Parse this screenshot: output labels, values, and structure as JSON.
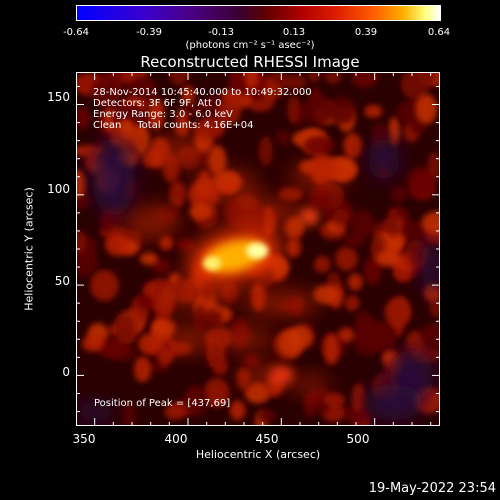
{
  "colorbar": {
    "ticks": [
      "-0.64",
      "-0.39",
      "-0.13",
      "0.13",
      "0.39",
      "0.64"
    ],
    "units": "(photons cm⁻² s⁻¹ asec⁻²)"
  },
  "chart_data": {
    "type": "heatmap",
    "title": "Reconstructed RHESSI Image",
    "xlabel": "Heliocentric X (arcsec)",
    "ylabel": "Heliocentric Y (arcsec)",
    "xlim": [
      340,
      535
    ],
    "ylim": [
      -28,
      168
    ],
    "xticks": [
      "350",
      "400",
      "450",
      "500"
    ],
    "yticks": [
      "0",
      "50",
      "100",
      "150"
    ],
    "color_range": [
      -0.64,
      0.64
    ],
    "colormap": "blue-purple-red-orange-yellow-white",
    "peak": [
      437,
      69
    ],
    "info_lines": [
      "28-Nov-2014 10:45:40.000 to 10:49:32.000",
      "Detectors: 3F 6F 9F, Att 0",
      "Energy Range: 3.0 - 6.0 keV",
      "Clean     Total counts: 4.16E+04"
    ],
    "peak_label": "Position of Peak = [437,69]"
  },
  "footer": {
    "timestamp": "19-May-2022 23:54"
  }
}
